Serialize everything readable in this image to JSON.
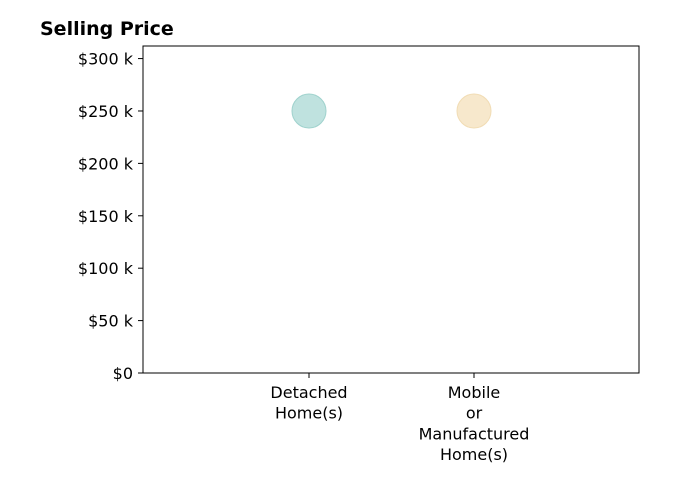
{
  "chart_data": {
    "type": "scatter",
    "title": "Selling Price",
    "xlabel": "",
    "ylabel": "",
    "categories": [
      [
        "Detached",
        "Home(s)"
      ],
      [
        "Mobile",
        "or",
        "Manufactured",
        "Home(s)"
      ]
    ],
    "points": [
      {
        "category_index": 0,
        "value": 250000,
        "color": "#bfe2df",
        "edge": "#9fd2cd"
      },
      {
        "category_index": 1,
        "value": 250000,
        "color": "#f7e8cc",
        "edge": "#f1dcb4"
      }
    ],
    "ylim": [
      0,
      312000
    ],
    "y_ticks": [
      0,
      50000,
      100000,
      150000,
      200000,
      250000,
      300000
    ],
    "y_tick_labels": [
      "$0",
      "$50 k",
      "$100 k",
      "$150 k",
      "$200 k",
      "$250 k",
      "$300 k"
    ],
    "grid": false,
    "legend": "none"
  }
}
